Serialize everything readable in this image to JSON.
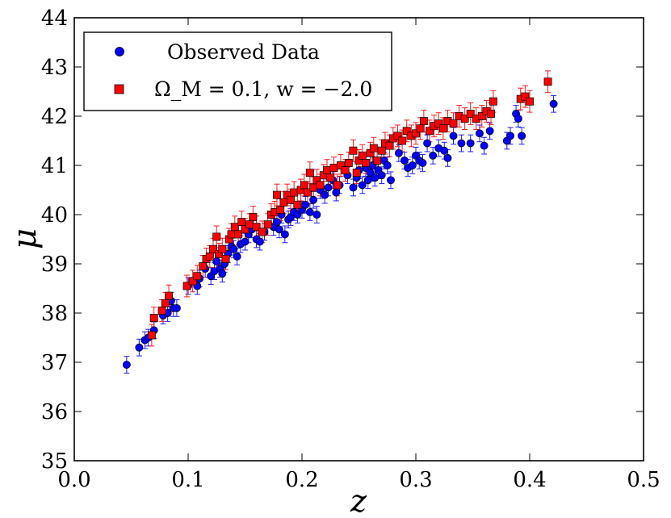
{
  "chart_data": {
    "type": "scatter",
    "title": "",
    "xlabel": "z",
    "ylabel": "μ",
    "xlim": [
      0.0,
      0.5
    ],
    "ylim": [
      35,
      44
    ],
    "xticks": [
      "0.0",
      "0.1",
      "0.2",
      "0.3",
      "0.4",
      "0.5"
    ],
    "yticks": [
      "35",
      "36",
      "37",
      "38",
      "39",
      "40",
      "41",
      "42",
      "43",
      "44"
    ],
    "grid": false,
    "legend_position": "top-left",
    "series": [
      {
        "name": "Observed Data",
        "marker": "circle",
        "color": "#0000ff",
        "error": 0.17,
        "points": [
          [
            0.046,
            36.95
          ],
          [
            0.057,
            37.3
          ],
          [
            0.062,
            37.45
          ],
          [
            0.065,
            37.5
          ],
          [
            0.07,
            37.65
          ],
          [
            0.078,
            37.95
          ],
          [
            0.082,
            38.0
          ],
          [
            0.085,
            38.25
          ],
          [
            0.087,
            38.1
          ],
          [
            0.09,
            38.1
          ],
          [
            0.1,
            38.55
          ],
          [
            0.108,
            38.55
          ],
          [
            0.11,
            38.7
          ],
          [
            0.115,
            38.9
          ],
          [
            0.12,
            38.75
          ],
          [
            0.123,
            38.85
          ],
          [
            0.125,
            39.05
          ],
          [
            0.128,
            38.9
          ],
          [
            0.13,
            38.8
          ],
          [
            0.132,
            39.0
          ],
          [
            0.135,
            39.2
          ],
          [
            0.138,
            39.35
          ],
          [
            0.14,
            39.3
          ],
          [
            0.143,
            39.15
          ],
          [
            0.146,
            39.4
          ],
          [
            0.15,
            39.45
          ],
          [
            0.153,
            39.6
          ],
          [
            0.156,
            39.7
          ],
          [
            0.16,
            39.5
          ],
          [
            0.163,
            39.45
          ],
          [
            0.167,
            39.65
          ],
          [
            0.175,
            39.75
          ],
          [
            0.178,
            39.85
          ],
          [
            0.18,
            39.7
          ],
          [
            0.182,
            40.0
          ],
          [
            0.185,
            39.6
          ],
          [
            0.188,
            39.9
          ],
          [
            0.19,
            39.95
          ],
          [
            0.193,
            40.05
          ],
          [
            0.196,
            40.0
          ],
          [
            0.2,
            40.1
          ],
          [
            0.203,
            40.2
          ],
          [
            0.207,
            40.05
          ],
          [
            0.21,
            40.3
          ],
          [
            0.213,
            40.0
          ],
          [
            0.216,
            40.5
          ],
          [
            0.22,
            40.4
          ],
          [
            0.223,
            40.55
          ],
          [
            0.227,
            40.7
          ],
          [
            0.23,
            40.45
          ],
          [
            0.233,
            40.6
          ],
          [
            0.24,
            40.8
          ],
          [
            0.245,
            40.55
          ],
          [
            0.248,
            40.75
          ],
          [
            0.25,
            40.9
          ],
          [
            0.253,
            40.6
          ],
          [
            0.256,
            40.95
          ],
          [
            0.258,
            40.7
          ],
          [
            0.26,
            40.85
          ],
          [
            0.262,
            41.0
          ],
          [
            0.264,
            40.75
          ],
          [
            0.267,
            40.9
          ],
          [
            0.27,
            40.8
          ],
          [
            0.272,
            41.1
          ],
          [
            0.275,
            41.0
          ],
          [
            0.278,
            40.7
          ],
          [
            0.285,
            41.25
          ],
          [
            0.29,
            41.1
          ],
          [
            0.293,
            40.95
          ],
          [
            0.297,
            41.0
          ],
          [
            0.3,
            41.2
          ],
          [
            0.303,
            41.1
          ],
          [
            0.306,
            41.05
          ],
          [
            0.31,
            41.45
          ],
          [
            0.315,
            41.2
          ],
          [
            0.32,
            41.35
          ],
          [
            0.325,
            41.3
          ],
          [
            0.328,
            41.15
          ],
          [
            0.333,
            41.6
          ],
          [
            0.34,
            41.45
          ],
          [
            0.348,
            41.45
          ],
          [
            0.356,
            41.65
          ],
          [
            0.36,
            41.4
          ],
          [
            0.365,
            41.7
          ],
          [
            0.38,
            41.5
          ],
          [
            0.383,
            41.6
          ],
          [
            0.388,
            42.05
          ],
          [
            0.39,
            41.95
          ],
          [
            0.393,
            41.6
          ],
          [
            0.421,
            42.25
          ]
        ]
      },
      {
        "name": "Ω_M = 0.1, w = −2.0",
        "marker": "square",
        "color": "#ff0000",
        "error": 0.22,
        "points": [
          [
            0.068,
            37.55
          ],
          [
            0.07,
            37.9
          ],
          [
            0.077,
            38.05
          ],
          [
            0.08,
            38.2
          ],
          [
            0.083,
            38.35
          ],
          [
            0.099,
            38.55
          ],
          [
            0.104,
            38.65
          ],
          [
            0.108,
            38.75
          ],
          [
            0.113,
            38.95
          ],
          [
            0.116,
            39.1
          ],
          [
            0.119,
            39.15
          ],
          [
            0.122,
            39.3
          ],
          [
            0.125,
            39.55
          ],
          [
            0.127,
            39.2
          ],
          [
            0.13,
            39.3
          ],
          [
            0.133,
            39.1
          ],
          [
            0.136,
            39.5
          ],
          [
            0.138,
            39.6
          ],
          [
            0.141,
            39.75
          ],
          [
            0.144,
            39.6
          ],
          [
            0.147,
            39.85
          ],
          [
            0.15,
            39.7
          ],
          [
            0.154,
            39.8
          ],
          [
            0.157,
            39.95
          ],
          [
            0.16,
            39.75
          ],
          [
            0.165,
            39.65
          ],
          [
            0.17,
            39.8
          ],
          [
            0.173,
            40.0
          ],
          [
            0.176,
            40.05
          ],
          [
            0.178,
            40.4
          ],
          [
            0.181,
            40.1
          ],
          [
            0.184,
            40.25
          ],
          [
            0.187,
            40.4
          ],
          [
            0.19,
            40.3
          ],
          [
            0.193,
            40.45
          ],
          [
            0.196,
            40.2
          ],
          [
            0.199,
            40.5
          ],
          [
            0.202,
            40.6
          ],
          [
            0.205,
            40.45
          ],
          [
            0.207,
            40.85
          ],
          [
            0.21,
            40.55
          ],
          [
            0.213,
            40.7
          ],
          [
            0.216,
            40.6
          ],
          [
            0.219,
            40.8
          ],
          [
            0.222,
            40.9
          ],
          [
            0.225,
            40.75
          ],
          [
            0.228,
            40.95
          ],
          [
            0.231,
            40.6
          ],
          [
            0.234,
            41.0
          ],
          [
            0.238,
            40.9
          ],
          [
            0.241,
            41.05
          ],
          [
            0.245,
            41.3
          ],
          [
            0.248,
            40.85
          ],
          [
            0.25,
            41.1
          ],
          [
            0.253,
            41.2
          ],
          [
            0.256,
            41.05
          ],
          [
            0.26,
            41.25
          ],
          [
            0.263,
            41.35
          ],
          [
            0.266,
            41.1
          ],
          [
            0.27,
            41.3
          ],
          [
            0.273,
            41.45
          ],
          [
            0.277,
            41.4
          ],
          [
            0.28,
            41.55
          ],
          [
            0.284,
            41.6
          ],
          [
            0.288,
            41.5
          ],
          [
            0.292,
            41.7
          ],
          [
            0.296,
            41.6
          ],
          [
            0.3,
            41.65
          ],
          [
            0.304,
            41.75
          ],
          [
            0.307,
            41.9
          ],
          [
            0.312,
            41.7
          ],
          [
            0.316,
            41.8
          ],
          [
            0.32,
            41.85
          ],
          [
            0.324,
            41.75
          ],
          [
            0.328,
            41.9
          ],
          [
            0.333,
            41.85
          ],
          [
            0.338,
            42.0
          ],
          [
            0.343,
            41.95
          ],
          [
            0.348,
            42.05
          ],
          [
            0.353,
            41.95
          ],
          [
            0.358,
            42.0
          ],
          [
            0.362,
            42.1
          ],
          [
            0.366,
            42.05
          ],
          [
            0.368,
            42.3
          ],
          [
            0.392,
            42.35
          ],
          [
            0.396,
            42.4
          ],
          [
            0.4,
            42.3
          ],
          [
            0.416,
            42.7
          ]
        ]
      }
    ]
  }
}
